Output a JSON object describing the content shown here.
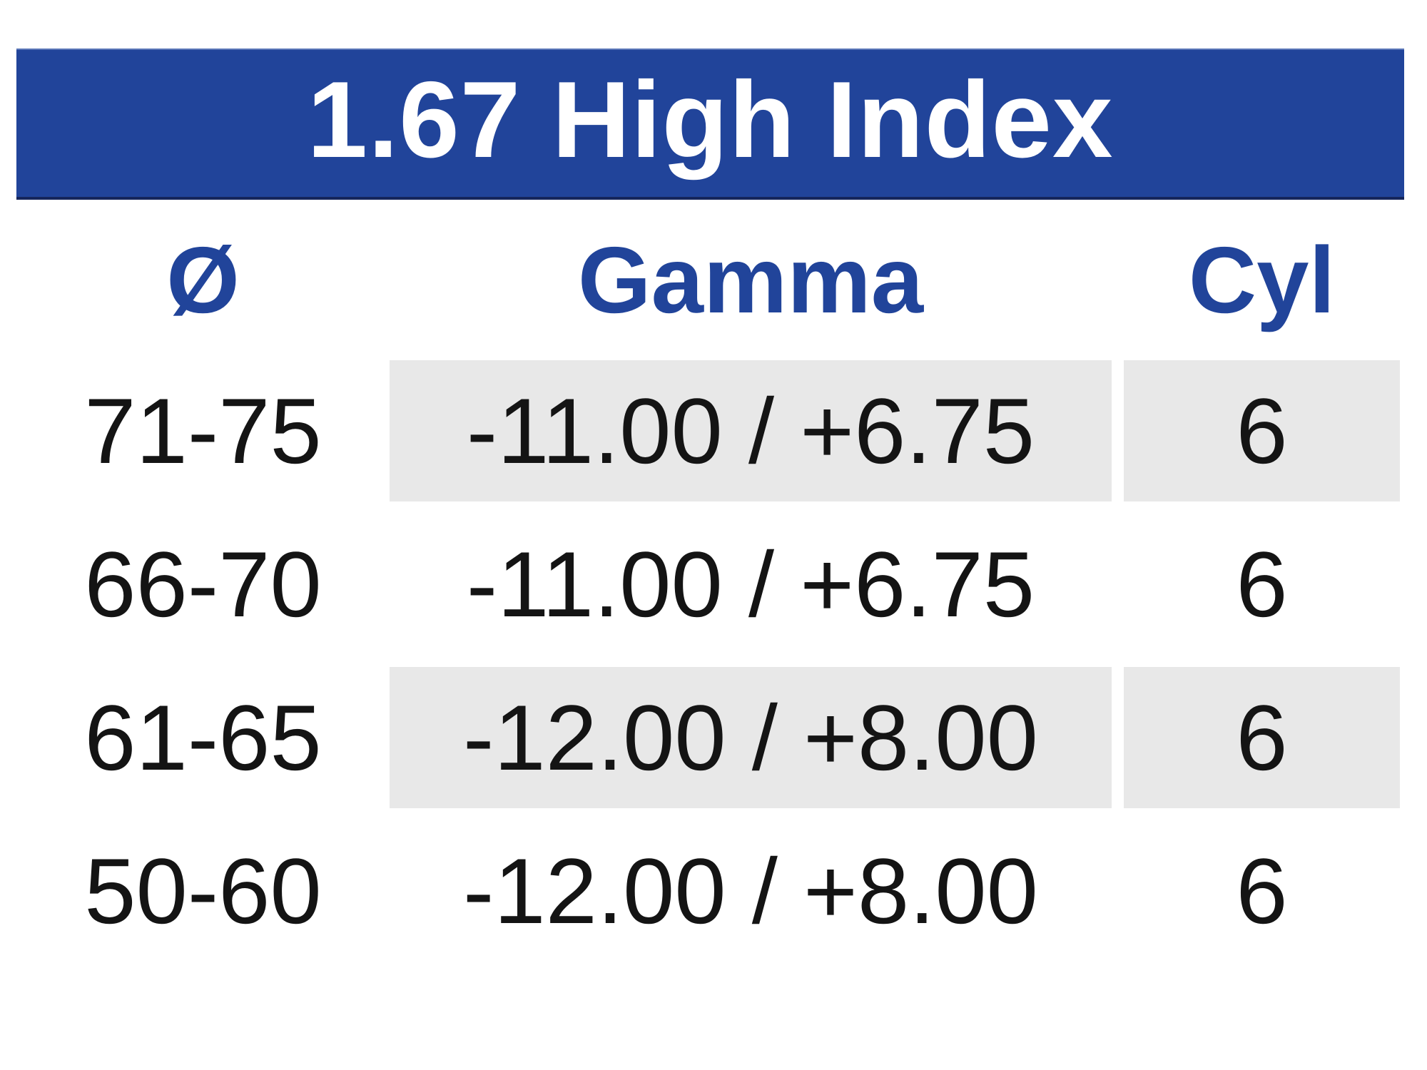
{
  "table": {
    "title": "1.67 High Index",
    "columns": [
      {
        "label": "Ø"
      },
      {
        "label": "Gamma"
      },
      {
        "label": "Cyl"
      }
    ],
    "rows": [
      {
        "diameter": "71-75",
        "gamma": "-11.00 / +6.75",
        "cyl": "6"
      },
      {
        "diameter": "66-70",
        "gamma": "-11.00 / +6.75",
        "cyl": "6"
      },
      {
        "diameter": "61-65",
        "gamma": "-12.00 / +8.00",
        "cyl": "6"
      },
      {
        "diameter": "50-60",
        "gamma": "-12.00 / +8.00",
        "cyl": "6"
      }
    ]
  },
  "colors": {
    "header_blue": "#21449a",
    "row_shade_gray": "#e8e8e8",
    "title_text": "#ffffff",
    "data_text": "#141414"
  }
}
